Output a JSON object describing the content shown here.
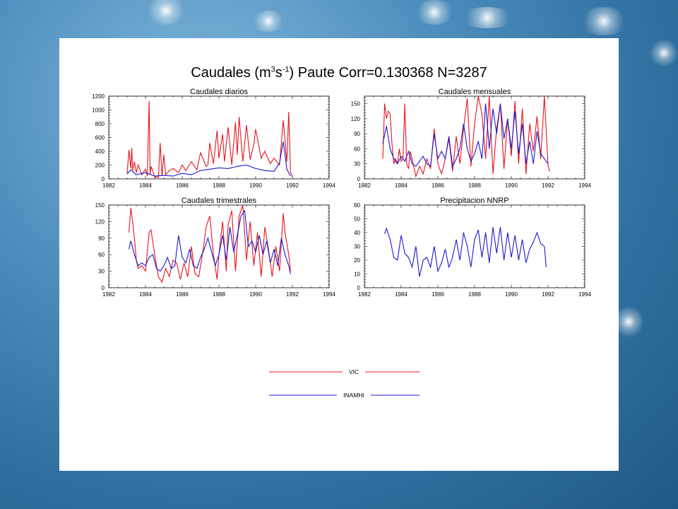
{
  "title_prefix": "Caudales (m",
  "title_sup1": "3",
  "title_mid": "s",
  "title_sup2": "-1",
  "title_suffix": ") Paute Corr=0.130368 N=3287",
  "colors": {
    "vic": "#e8141c",
    "inamhi": "#1a1ad0"
  },
  "legend": [
    {
      "name": "VIC",
      "color": "#e8141c"
    },
    {
      "name": "INAMHI",
      "color": "#1a1ad0"
    }
  ],
  "chart_data": [
    {
      "type": "line",
      "title": "Caudales diarios",
      "xlim": [
        1982,
        1994
      ],
      "ylim": [
        0,
        1200
      ],
      "xticks": [
        1982,
        1984,
        1986,
        1988,
        1990,
        1992,
        1994
      ],
      "yticks": [
        0,
        200,
        400,
        600,
        800,
        1000,
        1200
      ],
      "series": [
        {
          "name": "VIC",
          "color": "#e8141c",
          "x": [
            1983.0,
            1983.1,
            1983.2,
            1983.25,
            1983.3,
            1983.4,
            1983.5,
            1983.6,
            1983.8,
            1984.0,
            1984.1,
            1984.2,
            1984.25,
            1984.3,
            1984.5,
            1984.7,
            1984.8,
            1984.9,
            1985.0,
            1985.1,
            1985.3,
            1985.5,
            1985.8,
            1986.0,
            1986.2,
            1986.5,
            1986.8,
            1987.0,
            1987.3,
            1987.4,
            1987.5,
            1987.7,
            1987.9,
            1988.0,
            1988.2,
            1988.3,
            1988.5,
            1988.7,
            1988.9,
            1989.0,
            1989.1,
            1989.3,
            1989.5,
            1989.7,
            1989.9,
            1990.0,
            1990.3,
            1990.5,
            1990.8,
            1991.0,
            1991.3,
            1991.5,
            1991.7,
            1991.8,
            1991.9,
            1992.0
          ],
          "values": [
            80,
            420,
            150,
            450,
            120,
            250,
            90,
            200,
            60,
            140,
            40,
            1130,
            60,
            180,
            30,
            20,
            520,
            40,
            350,
            60,
            120,
            150,
            90,
            200,
            120,
            250,
            130,
            380,
            180,
            200,
            520,
            220,
            700,
            300,
            650,
            250,
            750,
            200,
            820,
            350,
            900,
            250,
            780,
            280,
            500,
            720,
            300,
            400,
            220,
            300,
            200,
            850,
            250,
            970,
            100,
            30
          ]
        },
        {
          "name": "INAMHI",
          "color": "#1a1ad0",
          "x": [
            1983.0,
            1983.2,
            1983.5,
            1984.0,
            1984.5,
            1985.0,
            1985.5,
            1986.0,
            1986.5,
            1987.0,
            1987.5,
            1988.0,
            1988.5,
            1989.0,
            1989.5,
            1990.0,
            1990.5,
            1991.0,
            1991.3,
            1991.5,
            1991.7,
            1991.9
          ],
          "values": [
            70,
            130,
            60,
            90,
            40,
            50,
            40,
            80,
            60,
            120,
            140,
            160,
            150,
            180,
            200,
            150,
            120,
            110,
            230,
            540,
            140,
            40
          ]
        }
      ]
    },
    {
      "type": "line",
      "title": "Caudales mensuales",
      "xlim": [
        1982,
        1994
      ],
      "ylim": [
        0,
        165
      ],
      "xticks": [
        1982,
        1984,
        1986,
        1988,
        1990,
        1992,
        1994
      ],
      "yticks": [
        0,
        30,
        60,
        90,
        120,
        150
      ],
      "series": [
        {
          "name": "VIC",
          "color": "#e8141c",
          "x": [
            1983.0,
            1983.1,
            1983.2,
            1983.3,
            1983.4,
            1983.5,
            1983.6,
            1983.7,
            1983.8,
            1983.9,
            1984.0,
            1984.1,
            1984.2,
            1984.3,
            1984.4,
            1984.5,
            1984.6,
            1984.8,
            1985.0,
            1985.2,
            1985.4,
            1985.6,
            1985.8,
            1986.0,
            1986.2,
            1986.4,
            1986.6,
            1986.8,
            1987.0,
            1987.2,
            1987.4,
            1987.6,
            1987.8,
            1988.0,
            1988.2,
            1988.4,
            1988.6,
            1988.8,
            1989.0,
            1989.2,
            1989.4,
            1989.6,
            1989.8,
            1990.0,
            1990.2,
            1990.4,
            1990.6,
            1990.8,
            1991.0,
            1991.2,
            1991.4,
            1991.6,
            1991.8,
            1992.0,
            1992.1
          ],
          "values": [
            40,
            150,
            120,
            135,
            130,
            70,
            30,
            40,
            30,
            60,
            35,
            40,
            150,
            30,
            20,
            55,
            40,
            5,
            25,
            10,
            40,
            20,
            100,
            30,
            10,
            40,
            80,
            15,
            85,
            30,
            100,
            160,
            25,
            110,
            165,
            130,
            40,
            165,
            10,
            100,
            150,
            20,
            120,
            45,
            155,
            30,
            140,
            10,
            110,
            55,
            125,
            40,
            165,
            25,
            15
          ]
        },
        {
          "name": "INAMHI",
          "color": "#1a1ad0",
          "x": [
            1983.0,
            1983.2,
            1983.4,
            1983.6,
            1983.8,
            1984.0,
            1984.2,
            1984.4,
            1984.6,
            1984.8,
            1985.0,
            1985.2,
            1985.4,
            1985.6,
            1985.8,
            1986.0,
            1986.2,
            1986.4,
            1986.6,
            1986.8,
            1987.0,
            1987.2,
            1987.4,
            1987.6,
            1987.8,
            1988.0,
            1988.2,
            1988.4,
            1988.6,
            1988.8,
            1989.0,
            1989.2,
            1989.4,
            1989.6,
            1989.8,
            1990.0,
            1990.2,
            1990.4,
            1990.6,
            1990.8,
            1991.0,
            1991.2,
            1991.4,
            1991.6,
            1991.8,
            1992.0
          ],
          "values": [
            70,
            105,
            60,
            40,
            30,
            45,
            35,
            55,
            30,
            25,
            35,
            45,
            30,
            25,
            90,
            40,
            55,
            40,
            85,
            25,
            40,
            60,
            110,
            60,
            35,
            50,
            75,
            40,
            150,
            60,
            140,
            90,
            150,
            80,
            120,
            60,
            135,
            50,
            110,
            30,
            75,
            30,
            95,
            50,
            40,
            30
          ]
        }
      ]
    },
    {
      "type": "line",
      "title": "Caudales trimestrales",
      "xlim": [
        1982,
        1994
      ],
      "ylim": [
        0,
        150
      ],
      "xticks": [
        1982,
        1984,
        1986,
        1988,
        1990,
        1992,
        1994
      ],
      "yticks": [
        0,
        30,
        60,
        90,
        120,
        150
      ],
      "series": [
        {
          "name": "VIC",
          "color": "#e8141c",
          "x": [
            1983.1,
            1983.2,
            1983.3,
            1983.4,
            1983.5,
            1983.6,
            1983.8,
            1984.0,
            1984.2,
            1984.3,
            1984.5,
            1984.7,
            1984.9,
            1985.1,
            1985.3,
            1985.5,
            1985.7,
            1985.9,
            1986.1,
            1986.3,
            1986.5,
            1986.7,
            1986.9,
            1987.1,
            1987.3,
            1987.5,
            1987.7,
            1987.9,
            1988.0,
            1988.2,
            1988.4,
            1988.5,
            1988.7,
            1988.9,
            1989.1,
            1989.3,
            1989.5,
            1989.7,
            1989.9,
            1990.1,
            1990.3,
            1990.5,
            1990.7,
            1990.9,
            1991.1,
            1991.3,
            1991.5,
            1991.6,
            1991.8,
            1991.9
          ],
          "values": [
            100,
            145,
            120,
            90,
            50,
            35,
            40,
            30,
            100,
            105,
            60,
            20,
            10,
            35,
            20,
            50,
            45,
            15,
            45,
            20,
            75,
            25,
            20,
            60,
            110,
            130,
            60,
            15,
            60,
            120,
            30,
            115,
            140,
            30,
            130,
            150,
            50,
            120,
            40,
            100,
            20,
            110,
            70,
            20,
            75,
            30,
            135,
            100,
            60,
            30
          ]
        },
        {
          "name": "INAMHI",
          "color": "#1a1ad0",
          "x": [
            1983.1,
            1983.2,
            1983.4,
            1983.6,
            1983.8,
            1984.0,
            1984.2,
            1984.4,
            1984.6,
            1984.8,
            1985.0,
            1985.2,
            1985.4,
            1985.6,
            1985.8,
            1986.0,
            1986.2,
            1986.4,
            1986.6,
            1986.8,
            1987.0,
            1987.2,
            1987.4,
            1987.6,
            1987.8,
            1988.0,
            1988.2,
            1988.4,
            1988.6,
            1988.8,
            1989.0,
            1989.2,
            1989.4,
            1989.6,
            1989.8,
            1990.0,
            1990.2,
            1990.4,
            1990.6,
            1990.8,
            1991.0,
            1991.2,
            1991.4,
            1991.6,
            1991.8,
            1991.9
          ],
          "values": [
            70,
            85,
            60,
            40,
            45,
            40,
            55,
            60,
            35,
            30,
            40,
            55,
            35,
            40,
            95,
            55,
            45,
            70,
            40,
            35,
            55,
            70,
            90,
            65,
            40,
            60,
            95,
            50,
            110,
            65,
            95,
            130,
            140,
            75,
            85,
            65,
            95,
            60,
            85,
            45,
            70,
            40,
            90,
            60,
            40,
            25
          ]
        }
      ]
    },
    {
      "type": "line",
      "title": "Precipitacion NNRP",
      "xlim": [
        1982,
        1994
      ],
      "ylim": [
        0,
        60
      ],
      "xticks": [
        1982,
        1984,
        1986,
        1988,
        1990,
        1992,
        1994
      ],
      "yticks": [
        0,
        10,
        20,
        30,
        40,
        50,
        60
      ],
      "series": [
        {
          "name": "INAMHI",
          "color": "#1a1ad0",
          "x": [
            1983.1,
            1983.2,
            1983.4,
            1983.6,
            1983.8,
            1984.0,
            1984.2,
            1984.4,
            1984.6,
            1984.8,
            1985.0,
            1985.2,
            1985.4,
            1985.6,
            1985.8,
            1986.0,
            1986.2,
            1986.4,
            1986.6,
            1986.8,
            1987.0,
            1987.2,
            1987.4,
            1987.6,
            1987.8,
            1988.0,
            1988.2,
            1988.4,
            1988.6,
            1988.8,
            1989.0,
            1989.2,
            1989.4,
            1989.6,
            1989.8,
            1990.0,
            1990.2,
            1990.4,
            1990.6,
            1990.8,
            1991.0,
            1991.2,
            1991.4,
            1991.6,
            1991.8,
            1991.9
          ],
          "values": [
            39,
            43,
            35,
            22,
            20,
            38,
            25,
            22,
            15,
            30,
            8,
            20,
            22,
            15,
            30,
            12,
            18,
            28,
            15,
            22,
            35,
            20,
            40,
            30,
            15,
            35,
            42,
            22,
            40,
            18,
            44,
            25,
            44,
            20,
            40,
            22,
            38,
            20,
            35,
            18,
            28,
            33,
            40,
            32,
            30,
            15
          ]
        }
      ]
    }
  ]
}
